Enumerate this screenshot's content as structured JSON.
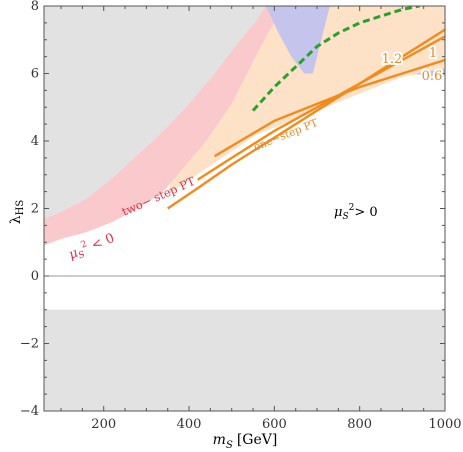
{
  "chart_data": {
    "type": "line",
    "xlabel_symbol": "m",
    "xlabel_sub": "S",
    "xlabel_unit": "[GeV]",
    "ylabel_symbol": "λ",
    "ylabel_sub": "HS",
    "xlim": [
      60,
      1000
    ],
    "ylim": [
      -4,
      8
    ],
    "xticks": [
      200,
      400,
      600,
      800,
      1000
    ],
    "yticks": [
      -4,
      -2,
      0,
      2,
      4,
      6,
      8
    ],
    "colors": {
      "excluded_gray": "#e2e2e2",
      "two_step_pink": "#fac9cc",
      "blue_band": "#c4c4ec",
      "one_step_peach": "#fde2c8",
      "orange_lines": "#f28a1c",
      "green_dashed": "#2aa12a",
      "label_red": "#e0304a",
      "label_orange": "#ea8a2a"
    },
    "regions": {
      "gray_upper": {
        "x": [
          60,
          100,
          160,
          220,
          280,
          340,
          400,
          460,
          520,
          560,
          580
        ],
        "y": [
          1.7,
          1.9,
          2.3,
          2.9,
          3.6,
          4.3,
          5.1,
          6.0,
          7.0,
          7.6,
          8.0
        ]
      },
      "gray_lower": {
        "y_top": -1.0
      },
      "pink_two_step_lower": {
        "x": [
          60,
          100,
          160,
          220,
          280,
          340,
          400,
          460,
          520,
          560,
          600,
          640,
          680,
          720
        ],
        "y": [
          0.9,
          1.1,
          1.3,
          1.6,
          2.0,
          2.5,
          3.0,
          3.8,
          4.6,
          5.3,
          6.0,
          6.8,
          7.5,
          8.0
        ]
      },
      "blue_upper": {
        "x": [
          580,
          610,
          640,
          670,
          690,
          730
        ],
        "y": [
          8.0,
          7.2,
          6.5,
          6.0,
          6.0,
          8.0
        ]
      },
      "peach_lower": {
        "x": [
          600,
          680,
          760,
          840,
          900,
          950,
          1000
        ],
        "y": [
          4.4,
          4.8,
          5.2,
          5.6,
          5.9,
          6.0,
          6.1
        ]
      }
    },
    "series": [
      {
        "name": "1.2",
        "x": [
          350,
          420,
          500,
          600,
          700,
          800,
          900,
          1000
        ],
        "y": [
          2.0,
          2.6,
          3.3,
          4.1,
          4.9,
          5.7,
          6.5,
          7.3
        ]
      },
      {
        "name": "1",
        "x": [
          420,
          500,
          600,
          700,
          800,
          900,
          1000
        ],
        "y": [
          2.85,
          3.5,
          4.3,
          5.0,
          5.7,
          6.4,
          7.1
        ]
      },
      {
        "name": "0.6",
        "x": [
          460,
          520,
          600,
          700,
          800,
          900,
          1000
        ],
        "y": [
          3.55,
          4.0,
          4.6,
          5.1,
          5.6,
          6.0,
          6.4
        ]
      },
      {
        "name": "",
        "style": "dashed",
        "x": [
          550,
          600,
          650,
          700,
          750,
          800,
          850,
          900,
          940
        ],
        "y": [
          4.9,
          5.6,
          6.2,
          6.8,
          7.2,
          7.5,
          7.7,
          7.9,
          8.0
        ]
      }
    ],
    "annotations": {
      "two_step": "two− step PT",
      "one_step": "one−step PT",
      "mu_neg_symbol": "μ",
      "mu_neg_sub": "S",
      "mu_neg_sup": "2",
      "mu_neg_rel": " < 0",
      "mu_pos_symbol": "μ",
      "mu_pos_sub": "S",
      "mu_pos_sup": "2",
      "mu_pos_rel": "> 0",
      "lbl_12": "1.2",
      "lbl_1": "1",
      "lbl_06": "0.6"
    }
  }
}
